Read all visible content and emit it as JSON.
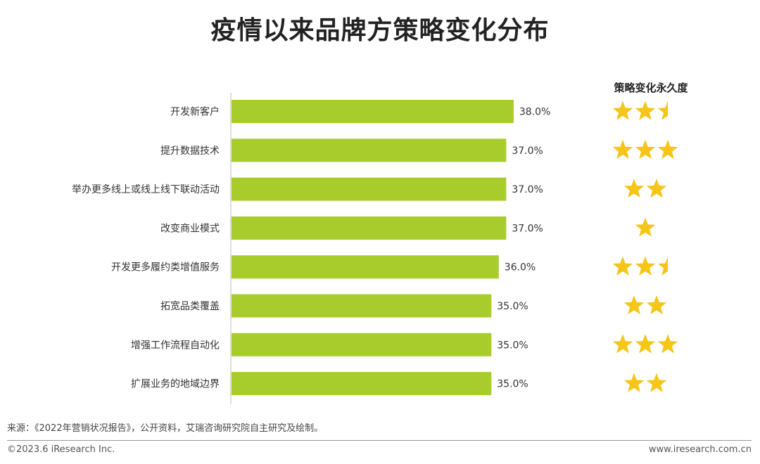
{
  "title": "疫情以来品牌方策略变化分布",
  "stars_header": "策略变化永久度",
  "chart_data": {
    "type": "bar",
    "orientation": "horizontal",
    "categories": [
      "开发新客户",
      "提升数据技术",
      "举办更多线上或线上线下联动活动",
      "改变商业模式",
      "开发更多履约类增值服务",
      "拓宽品类覆盖",
      "增强工作流程自动化",
      "扩展业务的地域边界"
    ],
    "values": [
      38.0,
      37.0,
      37.0,
      37.0,
      36.0,
      35.0,
      35.0,
      35.0
    ],
    "value_labels": [
      "38.0%",
      "37.0%",
      "37.0%",
      "37.0%",
      "36.0%",
      "35.0%",
      "35.0%",
      "35.0%"
    ],
    "stars": [
      2.5,
      3,
      2,
      1,
      2.5,
      2,
      3,
      2
    ],
    "stars_max": 3,
    "xlim": [
      0,
      100
    ],
    "bar_color": "#a8cc2c",
    "star_color": "#f5c518"
  },
  "footer": {
    "source": "来源：《2022年营销状况报告》，公开资料，艾瑞咨询研究院自主研究及绘制。",
    "copyright": "©2023.6 iResearch Inc.",
    "website": "www.iresearch.com.cn"
  }
}
